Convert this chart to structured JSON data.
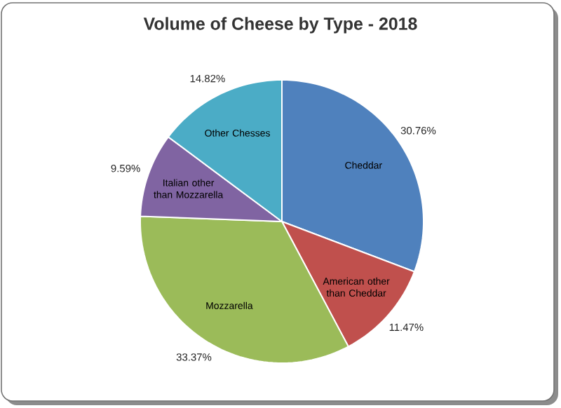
{
  "chart_data": {
    "type": "pie",
    "title": "Volume of Cheese by Type - 2018",
    "categories": [
      "Cheddar",
      "American other than Cheddar",
      "Mozzarella",
      "Italian other than Mozzarella",
      "Other Chesses"
    ],
    "values": [
      30.76,
      11.47,
      33.37,
      9.59,
      14.82
    ],
    "colors": [
      "#4f81bd",
      "#c0504d",
      "#9bbb59",
      "#8064a2",
      "#4bacc6"
    ],
    "value_labels": [
      "30.76%",
      "11.47%",
      "33.37%",
      "9.59%",
      "14.82%"
    ]
  }
}
